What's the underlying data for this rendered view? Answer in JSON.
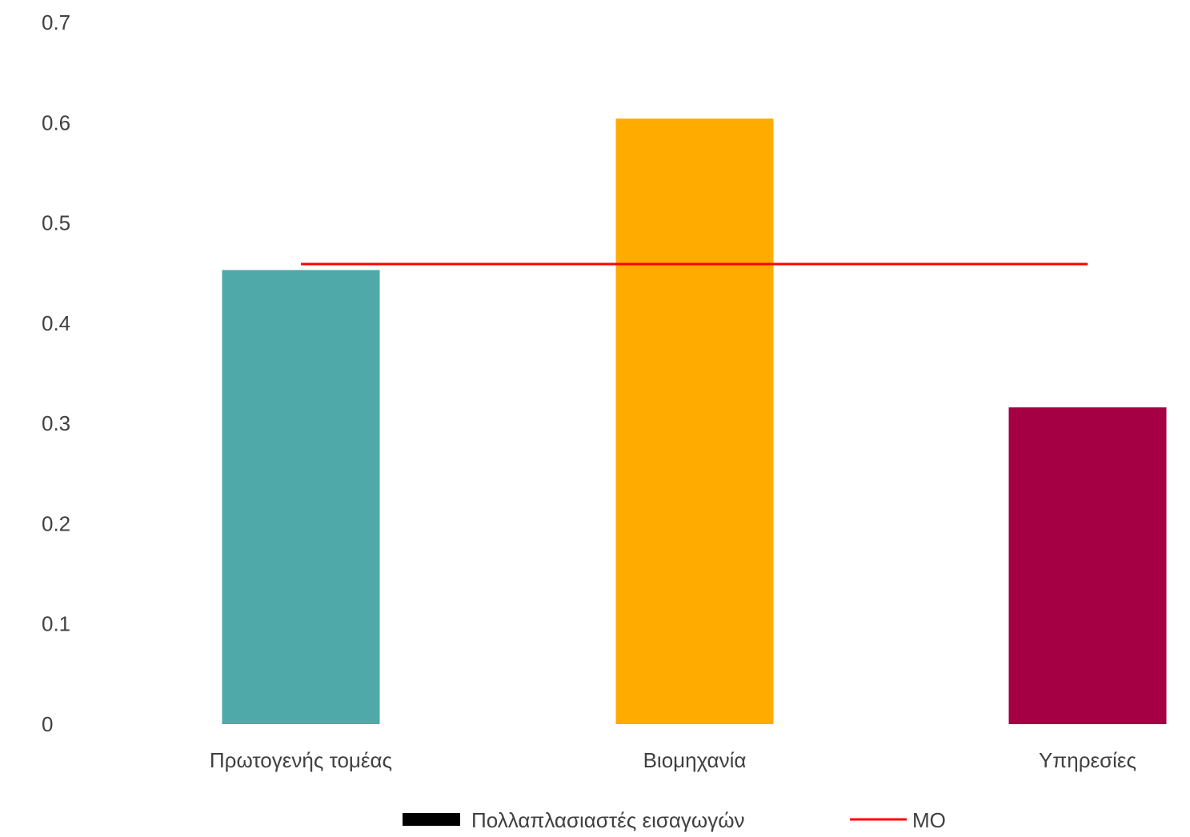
{
  "chart_data": {
    "type": "bar",
    "categories": [
      "Πρωτογενής τομέας",
      "Βιομηχανία",
      "Υπηρεσίες"
    ],
    "series": [
      {
        "name": "Πολλαπλασιαστές εισαγωγών",
        "type": "bar",
        "values": [
          0.453,
          0.604,
          0.316
        ],
        "colors": [
          "#4FA9A9",
          "#FFAB00",
          "#A50044"
        ],
        "legend_color": "#000000"
      },
      {
        "name": "ΜΟ",
        "type": "line",
        "values": [
          0.459,
          0.459,
          0.459
        ],
        "color": "#FF0000"
      }
    ],
    "y_ticks": [
      "0",
      "0.1",
      "0.2",
      "0.3",
      "0.4",
      "0.5",
      "0.6",
      "0.7"
    ],
    "ylim": [
      0,
      0.7
    ],
    "grid": false,
    "legend_position": "bottom-center"
  }
}
